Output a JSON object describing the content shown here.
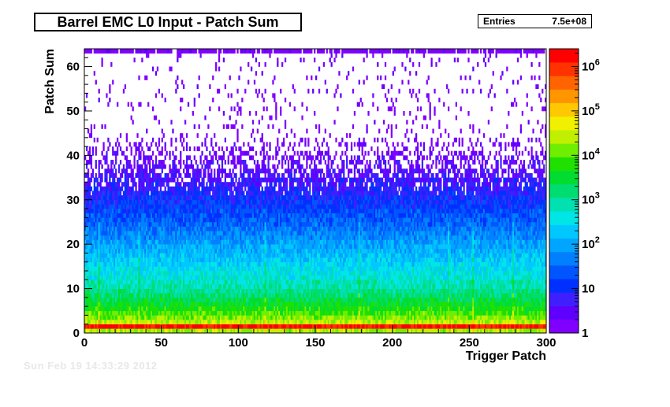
{
  "chart_data": {
    "type": "heatmap",
    "title": "Barrel EMC L0 Input - Patch Sum",
    "xlabel": "Trigger Patch",
    "ylabel": "Patch Sum",
    "xlim": [
      0,
      300
    ],
    "ylim": [
      0,
      64
    ],
    "x_ticks": [
      "0",
      "50",
      "100",
      "150",
      "200",
      "250",
      "300"
    ],
    "y_ticks": [
      "0",
      "10",
      "20",
      "30",
      "40",
      "50",
      "60"
    ],
    "z_scale": "log",
    "zlim": [
      1,
      2500000
    ],
    "z_ticks": [
      "1",
      "10",
      "10^2",
      "10^3",
      "10^4",
      "10^5",
      "10^6"
    ],
    "stats": {
      "label": "Entries",
      "value": "7.5e+08"
    },
    "palette": [
      "#7f00ff",
      "#5f00ff",
      "#3f1fff",
      "#0030ff",
      "#0055ff",
      "#0080ff",
      "#00a5ff",
      "#00c8ff",
      "#00e6e6",
      "#00e0b0",
      "#00dd70",
      "#00dd30",
      "#20e000",
      "#70ee00",
      "#c0f000",
      "#f0f000",
      "#ffc800",
      "#ff9600",
      "#ff6400",
      "#ff3200",
      "#ff0000"
    ],
    "profile": [
      {
        "y": 0,
        "log10_count": 4.3
      },
      {
        "y": 1,
        "log10_count": 6.2
      },
      {
        "y": 2,
        "log10_count": 4.4
      },
      {
        "y": 5,
        "log10_count": 3.7
      },
      {
        "y": 10,
        "log10_count": 2.9
      },
      {
        "y": 15,
        "log10_count": 2.4
      },
      {
        "y": 20,
        "log10_count": 1.9
      },
      {
        "y": 25,
        "log10_count": 1.4
      },
      {
        "y": 30,
        "log10_count": 1.0
      },
      {
        "y": 35,
        "log10_count": 0.6
      },
      {
        "y": 40,
        "log10_count": 0.3
      },
      {
        "y": 45,
        "log10_count": 0.05
      },
      {
        "y": 63,
        "log10_count": 0.05
      }
    ],
    "overflow_row_y": 63
  }
}
